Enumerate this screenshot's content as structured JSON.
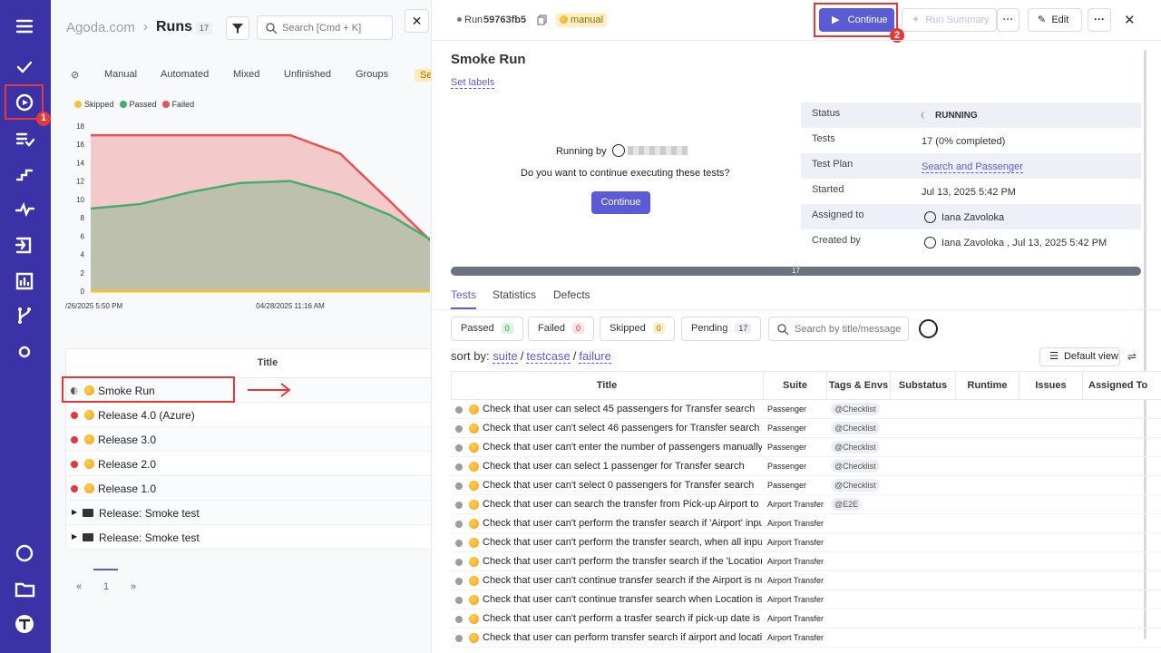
{
  "sidebar": {
    "badge": "1"
  },
  "left": {
    "breadcrumb": {
      "site": "Agoda.com",
      "separator": "›",
      "section": "Runs",
      "count": "17"
    },
    "search_placeholder": "Search [Cmd + K]",
    "tabs": [
      "Manual",
      "Automated",
      "Mixed",
      "Unfinished",
      "Groups",
      "Se"
    ],
    "chart": {
      "type": "area",
      "categories": [
        "/26/2025 5:50 PM",
        null,
        null,
        null,
        "04/28/2025 11:16 AM",
        null,
        null,
        null
      ],
      "series": [
        {
          "name": "Skipped",
          "color": "#f2c230",
          "values": [
            0,
            0,
            0,
            0,
            0,
            0,
            0,
            0
          ]
        },
        {
          "name": "Passed",
          "color": "#47ad6c",
          "values": [
            9,
            9.5,
            10.8,
            11.8,
            12,
            10.5,
            8.3,
            5
          ]
        },
        {
          "name": "Failed",
          "color": "#e25555",
          "values": [
            17,
            17,
            17,
            17,
            17,
            15,
            9.8,
            4.5
          ]
        }
      ],
      "ylim": [
        0,
        18
      ],
      "yticks": [
        0,
        2,
        4,
        6,
        8,
        10,
        12,
        14,
        16,
        18
      ]
    },
    "list": {
      "header": "Title",
      "runs": [
        {
          "title": "Smoke Run",
          "status": "running"
        },
        {
          "title": "Release 4.0 (Azure)",
          "status": "failed"
        },
        {
          "title": "Release 3.0",
          "status": "failed"
        },
        {
          "title": "Release 2.0",
          "status": "failed"
        },
        {
          "title": "Release 1.0",
          "status": "failed"
        }
      ],
      "groups": [
        "Release: Smoke test",
        "Release: Smoke test"
      ]
    },
    "pagination": {
      "prev": "«",
      "page": "1",
      "next": "»"
    }
  },
  "right": {
    "header": {
      "run_label": "Run",
      "run_id": "59763fb5",
      "tag": "manual",
      "continue": "Continue",
      "summary": "Run Summary",
      "edit": "Edit",
      "badge": "2"
    },
    "title": "Smoke Run",
    "set_labels": "Set labels",
    "prompt": {
      "running_by": "Running by",
      "question": "Do you want to continue executing these tests?",
      "button": "Continue"
    },
    "details": [
      {
        "label": "Status",
        "value": "RUNNING"
      },
      {
        "label": "Tests",
        "value": "17 (0% completed)"
      },
      {
        "label": "Test Plan",
        "value": "Search and Passenger"
      },
      {
        "label": "Started",
        "value": "Jul 13, 2025 5:42 PM"
      },
      {
        "label": "Assigned to",
        "value": "Iana Zavoloka"
      },
      {
        "label": "Created by",
        "value": "Iana Zavoloka , Jul 13, 2025 5:42 PM"
      }
    ],
    "progress": "17",
    "tabs": [
      "Tests",
      "Statistics",
      "Defects"
    ],
    "filters": [
      {
        "label": "Passed",
        "count": "0"
      },
      {
        "label": "Failed",
        "count": "0"
      },
      {
        "label": "Skipped",
        "count": "0"
      },
      {
        "label": "Pending",
        "count": "17"
      }
    ],
    "search_placeholder": "Search by title/message",
    "sort": {
      "label": "sort by:",
      "separator": "/",
      "options": [
        "suite",
        "testcase",
        "failure"
      ]
    },
    "view": "Default view",
    "columns": [
      "Title",
      "Suite",
      "Tags & Envs",
      "Substatus",
      "Runtime",
      "Issues",
      "Assigned To"
    ],
    "rows": [
      {
        "title": "Check that user can select 45 passengers for Transfer search",
        "suite": "Passenger",
        "tag": "@Checklist"
      },
      {
        "title": "Check that user can't select 46 passengers for Transfer search",
        "suite": "Passenger",
        "tag": "@Checklist"
      },
      {
        "title": "Check that user can't enter the number of passengers manually",
        "suite": "Passenger",
        "tag": "@Checklist"
      },
      {
        "title": "Check that user can select 1 passenger for Transfer search",
        "suite": "Passenger",
        "tag": "@Checklist"
      },
      {
        "title": "Check that user can't select 0 passengers for Transfer search",
        "suite": "Passenger",
        "tag": "@Checklist"
      },
      {
        "title": "Check that user can search the transfer from Pick-up Airport to De",
        "suite": "Airport Transfer",
        "tag": "@E2E"
      },
      {
        "title": "Check that user can't perform the transfer search if 'Airport' input",
        "suite": "Airport Transfer"
      },
      {
        "title": "Check that user can't perform the transfer search, when all input fi",
        "suite": "Airport Transfer"
      },
      {
        "title": "Check that user can't perform the transfer search if the 'Location'",
        "suite": "Airport Transfer"
      },
      {
        "title": "Check that user can't continue transfer search if the Airport is not",
        "suite": "Airport Transfer"
      },
      {
        "title": "Check that user can't continue transfer search when Location is no",
        "suite": "Airport Transfer"
      },
      {
        "title": "Check that user can't perform a trasfer search if pick-up date is no",
        "suite": "Airport Transfer"
      },
      {
        "title": "Check that user can perform transfer search if airport and location",
        "suite": "Airport Transfer"
      }
    ]
  }
}
